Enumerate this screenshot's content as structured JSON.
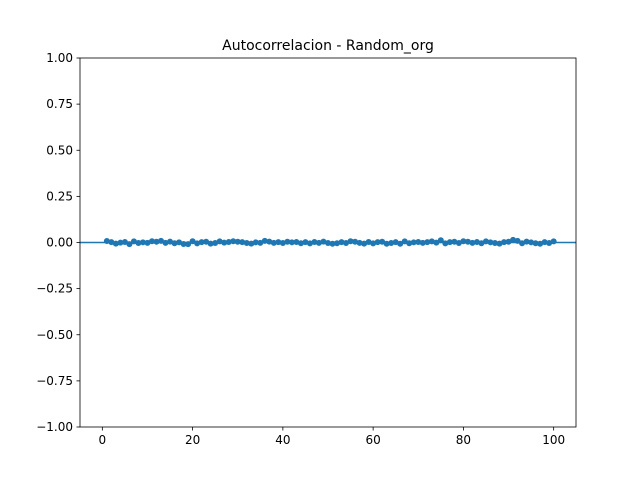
{
  "chart_data": {
    "type": "scatter",
    "title": "Autocorrelacion - Random_org",
    "xlabel": "",
    "ylabel": "",
    "xlim": [
      -4.95,
      104.95
    ],
    "ylim": [
      -1.0,
      1.0
    ],
    "x_ticks": [
      0,
      20,
      40,
      60,
      80,
      100
    ],
    "x_tick_labels": [
      "0",
      "20",
      "40",
      "60",
      "80",
      "100"
    ],
    "y_ticks": [
      -1.0,
      -0.75,
      -0.5,
      -0.25,
      0.0,
      0.25,
      0.5,
      0.75,
      1.0
    ],
    "y_tick_labels": [
      "−1.00",
      "−0.75",
      "−0.50",
      "−0.25",
      "0.00",
      "0.25",
      "0.50",
      "0.75",
      "1.00"
    ],
    "grid": false,
    "reference_line_y": 0.0,
    "marker_color": "#1f77b4",
    "line_color": "#1f77b4",
    "x": [
      1,
      2,
      3,
      4,
      5,
      6,
      7,
      8,
      9,
      10,
      11,
      12,
      13,
      14,
      15,
      16,
      17,
      18,
      19,
      20,
      21,
      22,
      23,
      24,
      25,
      26,
      27,
      28,
      29,
      30,
      31,
      32,
      33,
      34,
      35,
      36,
      37,
      38,
      39,
      40,
      41,
      42,
      43,
      44,
      45,
      46,
      47,
      48,
      49,
      50,
      51,
      52,
      53,
      54,
      55,
      56,
      57,
      58,
      59,
      60,
      61,
      62,
      63,
      64,
      65,
      66,
      67,
      68,
      69,
      70,
      71,
      72,
      73,
      74,
      75,
      76,
      77,
      78,
      79,
      80,
      81,
      82,
      83,
      84,
      85,
      86,
      87,
      88,
      89,
      90,
      91,
      92,
      93,
      94,
      95,
      96,
      97,
      98,
      99,
      100
    ],
    "values": [
      0.008,
      0.002,
      -0.006,
      -0.001,
      0.003,
      -0.009,
      0.006,
      -0.003,
      0.001,
      -0.002,
      0.007,
      0.004,
      0.009,
      -0.002,
      0.005,
      -0.004,
      0.001,
      -0.008,
      -0.009,
      0.007,
      -0.005,
      0.002,
      0.004,
      -0.006,
      -0.003,
      0.006,
      -0.001,
      0.003,
      0.007,
      0.004,
      0.002,
      -0.003,
      -0.006,
      0.001,
      -0.002,
      0.009,
      0.005,
      -0.002,
      0.002,
      -0.003,
      0.004,
      0.001,
      0.003,
      -0.004,
      0.002,
      -0.005,
      0.003,
      -0.002,
      0.005,
      -0.003,
      -0.007,
      -0.004,
      0.002,
      -0.003,
      0.007,
      0.004,
      -0.002,
      -0.006,
      0.003,
      -0.005,
      0.002,
      0.004,
      -0.007,
      -0.003,
      0.002,
      -0.007,
      0.006,
      -0.004,
      0.001,
      0.003,
      -0.002,
      0.002,
      0.006,
      -0.001,
      0.012,
      -0.005,
      0.002,
      0.004,
      -0.003,
      0.007,
      0.004,
      -0.002,
      0.003,
      -0.004,
      0.006,
      0.001,
      -0.003,
      -0.006,
      0.002,
      0.004,
      0.014,
      0.009,
      -0.004,
      0.005,
      0.001,
      -0.004,
      -0.007,
      0.002,
      -0.003,
      0.006
    ]
  }
}
